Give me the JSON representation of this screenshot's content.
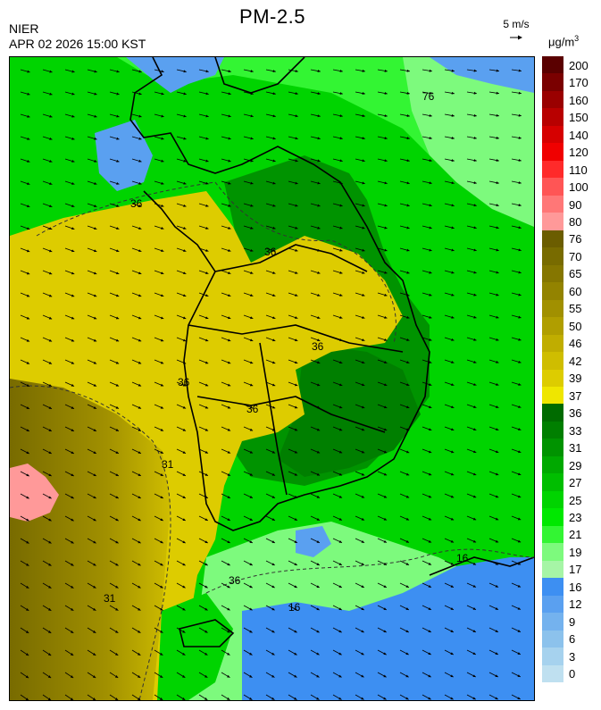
{
  "header": {
    "title": "PM-2.5",
    "org": "NIER",
    "timestamp": "APR 02 2026 15:00 KST",
    "wind_reference": "5 m/s",
    "unit_prefix": "μg/m",
    "unit_sup": "3"
  },
  "map": {
    "contour_labels": [
      "76",
      "36",
      "36",
      "36",
      "36",
      "36",
      "36",
      "31",
      "31",
      "16",
      "16"
    ]
  },
  "legend": {
    "levels": [
      {
        "label": "200",
        "color": "#5a0000"
      },
      {
        "label": "170",
        "color": "#7a0000"
      },
      {
        "label": "160",
        "color": "#9a0000"
      },
      {
        "label": "150",
        "color": "#b80000"
      },
      {
        "label": "140",
        "color": "#d60000"
      },
      {
        "label": "120",
        "color": "#f00000"
      },
      {
        "label": "110",
        "color": "#ff2a2a"
      },
      {
        "label": "100",
        "color": "#ff5555"
      },
      {
        "label": "90",
        "color": "#ff7777"
      },
      {
        "label": "80",
        "color": "#ff9999"
      },
      {
        "label": "76",
        "color": "#6b5d00"
      },
      {
        "label": "70",
        "color": "#786b00"
      },
      {
        "label": "65",
        "color": "#857600"
      },
      {
        "label": "60",
        "color": "#938300"
      },
      {
        "label": "55",
        "color": "#a19000"
      },
      {
        "label": "50",
        "color": "#b09e00"
      },
      {
        "label": "46",
        "color": "#c0ad00"
      },
      {
        "label": "42",
        "color": "#cfbd00"
      },
      {
        "label": "39",
        "color": "#ddcc00"
      },
      {
        "label": "37",
        "color": "#efe600"
      },
      {
        "label": "36",
        "color": "#006b00"
      },
      {
        "label": "33",
        "color": "#007f00"
      },
      {
        "label": "31",
        "color": "#009300"
      },
      {
        "label": "29",
        "color": "#00a900"
      },
      {
        "label": "27",
        "color": "#00be00"
      },
      {
        "label": "25",
        "color": "#00d400"
      },
      {
        "label": "23",
        "color": "#00e800"
      },
      {
        "label": "21",
        "color": "#33f533"
      },
      {
        "label": "19",
        "color": "#7dfa7d"
      },
      {
        "label": "17",
        "color": "#a6f5a6"
      },
      {
        "label": "16",
        "color": "#3d8ff2"
      },
      {
        "label": "12",
        "color": "#5aa0f0"
      },
      {
        "label": "9",
        "color": "#74b2ee"
      },
      {
        "label": "6",
        "color": "#8cc2ec"
      },
      {
        "label": "3",
        "color": "#a6d2ee"
      },
      {
        "label": "0",
        "color": "#bfe0f0"
      }
    ]
  }
}
